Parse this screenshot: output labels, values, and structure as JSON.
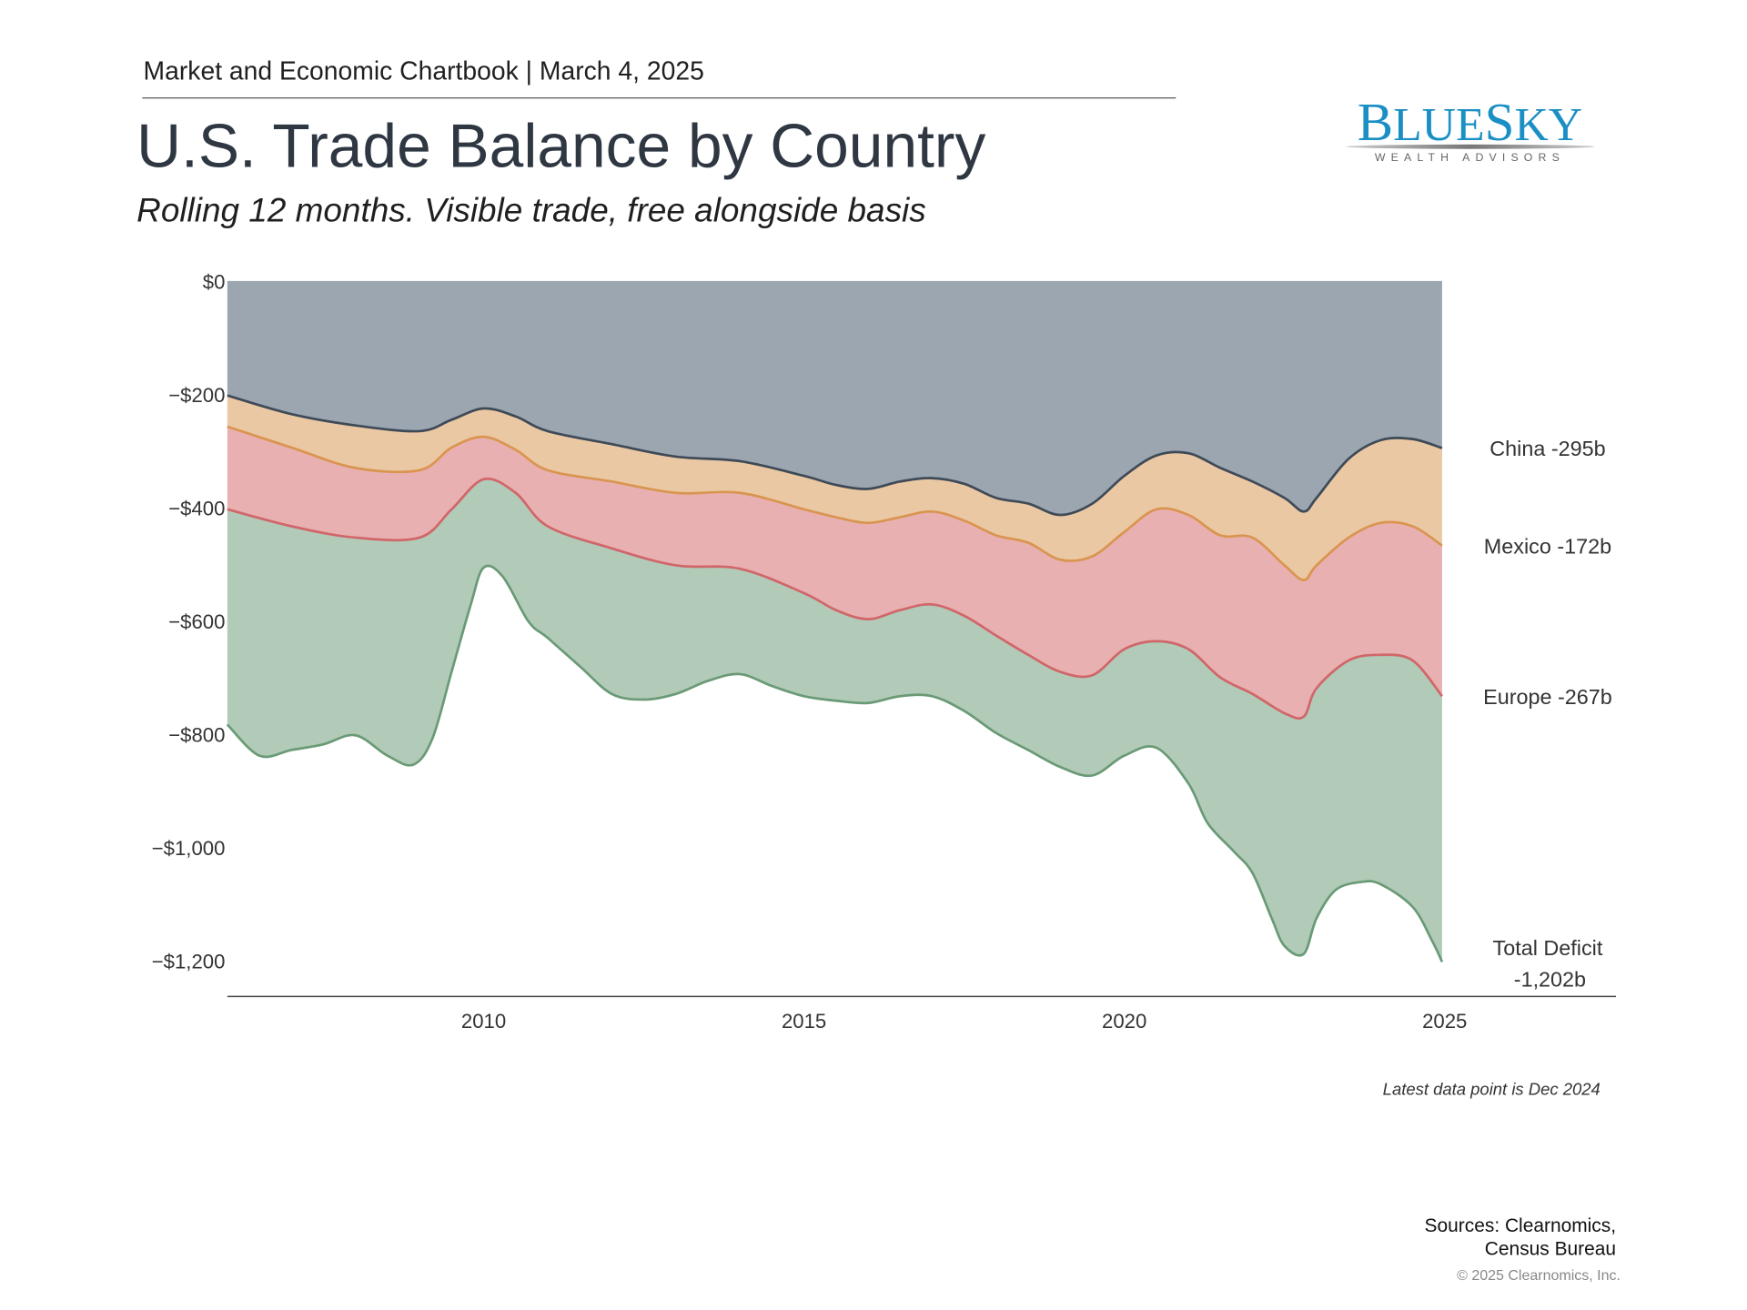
{
  "header": {
    "line": "Market and Economic Chartbook | March 4, 2025",
    "title": "U.S. Trade Balance by Country",
    "subtitle": "Rolling 12 months. Visible trade, free alongside basis"
  },
  "logo": {
    "name": "BLUESKY",
    "tagline": "WEALTH ADVISORS",
    "color": "#1a8fc4"
  },
  "footer": {
    "note": "Latest data point is Dec 2024",
    "sources_line1": "Sources: Clearnomics,",
    "sources_line2": "Census Bureau",
    "copyright": "© 2025 Clearnomics, Inc."
  },
  "chart_data": {
    "type": "area",
    "stacked": true,
    "ylim": [
      -1260,
      0
    ],
    "xlim": [
      2006.0,
      2025.0
    ],
    "yticks": [
      0,
      -200,
      -400,
      -600,
      -800,
      -1000,
      -1200
    ],
    "ytick_labels": [
      "$0",
      "−$200",
      "−$400",
      "−$600",
      "−$800",
      "−$1,000",
      "−$1,200"
    ],
    "xticks": [
      2010,
      2015,
      2020,
      2025
    ],
    "xtick_labels": [
      "2010",
      "2015",
      "2020",
      "2025"
    ],
    "grid": false,
    "series": [
      {
        "name": "China",
        "end_label": "China -295b",
        "fill": "#9ba6b0",
        "line": "#3e4a57",
        "points": [
          [
            2006.0,
            -202
          ],
          [
            2007,
            -235
          ],
          [
            2008,
            -255
          ],
          [
            2009,
            -265
          ],
          [
            2009.5,
            -245
          ],
          [
            2010,
            -225
          ],
          [
            2010.5,
            -239
          ],
          [
            2011,
            -265
          ],
          [
            2012,
            -288
          ],
          [
            2013,
            -310
          ],
          [
            2014,
            -318
          ],
          [
            2015,
            -344
          ],
          [
            2015.5,
            -360
          ],
          [
            2016,
            -367
          ],
          [
            2016.5,
            -354
          ],
          [
            2017,
            -348
          ],
          [
            2017.5,
            -358
          ],
          [
            2018,
            -383
          ],
          [
            2018.5,
            -393
          ],
          [
            2019,
            -413
          ],
          [
            2019.5,
            -393
          ],
          [
            2020,
            -344
          ],
          [
            2020.5,
            -308
          ],
          [
            2021,
            -304
          ],
          [
            2021.5,
            -330
          ],
          [
            2022,
            -354
          ],
          [
            2022.5,
            -383
          ],
          [
            2022.8,
            -407
          ],
          [
            2023,
            -383
          ],
          [
            2023.5,
            -314
          ],
          [
            2024,
            -281
          ],
          [
            2024.5,
            -279
          ],
          [
            2024.96,
            -295
          ]
        ]
      },
      {
        "name": "Mexico",
        "end_label": "Mexico -172b",
        "fill": "#ebc8a4",
        "line": "#d99550",
        "points": [
          [
            2006.0,
            -257
          ],
          [
            2007,
            -294
          ],
          [
            2008,
            -330
          ],
          [
            2009,
            -334
          ],
          [
            2009.5,
            -294
          ],
          [
            2010,
            -275
          ],
          [
            2010.5,
            -298
          ],
          [
            2011,
            -334
          ],
          [
            2012,
            -354
          ],
          [
            2013,
            -374
          ],
          [
            2014,
            -374
          ],
          [
            2015,
            -403
          ],
          [
            2015.5,
            -417
          ],
          [
            2016,
            -427
          ],
          [
            2016.5,
            -417
          ],
          [
            2017,
            -407
          ],
          [
            2017.5,
            -423
          ],
          [
            2018,
            -449
          ],
          [
            2018.5,
            -462
          ],
          [
            2019,
            -492
          ],
          [
            2019.5,
            -486
          ],
          [
            2020,
            -443
          ],
          [
            2020.5,
            -403
          ],
          [
            2021,
            -413
          ],
          [
            2021.5,
            -449
          ],
          [
            2022,
            -453
          ],
          [
            2022.5,
            -502
          ],
          [
            2022.8,
            -528
          ],
          [
            2023,
            -502
          ],
          [
            2023.5,
            -453
          ],
          [
            2024,
            -427
          ],
          [
            2024.5,
            -433
          ],
          [
            2024.96,
            -467
          ]
        ]
      },
      {
        "name": "Europe",
        "end_label": "Europe -267b",
        "fill": "#e8b0b0",
        "line": "#d0666a",
        "points": [
          [
            2006.0,
            -403
          ],
          [
            2007,
            -433
          ],
          [
            2008,
            -453
          ],
          [
            2009,
            -453
          ],
          [
            2009.5,
            -403
          ],
          [
            2010,
            -350
          ],
          [
            2010.5,
            -374
          ],
          [
            2011,
            -433
          ],
          [
            2012,
            -472
          ],
          [
            2013,
            -502
          ],
          [
            2014,
            -508
          ],
          [
            2015,
            -551
          ],
          [
            2015.5,
            -581
          ],
          [
            2016,
            -597
          ],
          [
            2016.5,
            -581
          ],
          [
            2017,
            -571
          ],
          [
            2017.5,
            -591
          ],
          [
            2018,
            -626
          ],
          [
            2018.5,
            -660
          ],
          [
            2019,
            -690
          ],
          [
            2019.5,
            -696
          ],
          [
            2020,
            -650
          ],
          [
            2020.5,
            -636
          ],
          [
            2021,
            -650
          ],
          [
            2021.5,
            -700
          ],
          [
            2022,
            -729
          ],
          [
            2022.5,
            -763
          ],
          [
            2022.8,
            -769
          ],
          [
            2023,
            -719
          ],
          [
            2023.5,
            -670
          ],
          [
            2024,
            -660
          ],
          [
            2024.5,
            -670
          ],
          [
            2024.96,
            -733
          ]
        ]
      },
      {
        "name": "Total Deficit",
        "end_label": "Total Deficit",
        "end_label2": "-1,202b",
        "fill": "#b2cbb8",
        "line": "#6a9a76",
        "points": [
          [
            2006.0,
            -783
          ],
          [
            2006.5,
            -838
          ],
          [
            2007,
            -828
          ],
          [
            2007.5,
            -818
          ],
          [
            2008,
            -802
          ],
          [
            2008.5,
            -838
          ],
          [
            2008.9,
            -854
          ],
          [
            2009.2,
            -808
          ],
          [
            2009.5,
            -690
          ],
          [
            2009.8,
            -571
          ],
          [
            2010,
            -506
          ],
          [
            2010.3,
            -522
          ],
          [
            2010.7,
            -601
          ],
          [
            2011,
            -630
          ],
          [
            2011.5,
            -680
          ],
          [
            2012,
            -729
          ],
          [
            2012.5,
            -739
          ],
          [
            2013,
            -729
          ],
          [
            2013.5,
            -706
          ],
          [
            2014,
            -694
          ],
          [
            2014.5,
            -715
          ],
          [
            2015,
            -733
          ],
          [
            2015.5,
            -741
          ],
          [
            2016,
            -745
          ],
          [
            2016.5,
            -733
          ],
          [
            2017,
            -733
          ],
          [
            2017.5,
            -759
          ],
          [
            2018,
            -798
          ],
          [
            2018.5,
            -828
          ],
          [
            2019,
            -858
          ],
          [
            2019.5,
            -873
          ],
          [
            2020,
            -838
          ],
          [
            2020.5,
            -824
          ],
          [
            2021,
            -887
          ],
          [
            2021.3,
            -957
          ],
          [
            2021.7,
            -1006
          ],
          [
            2022,
            -1045
          ],
          [
            2022.3,
            -1125
          ],
          [
            2022.5,
            -1174
          ],
          [
            2022.8,
            -1188
          ],
          [
            2023,
            -1125
          ],
          [
            2023.3,
            -1075
          ],
          [
            2023.7,
            -1061
          ],
          [
            2024,
            -1065
          ],
          [
            2024.5,
            -1105
          ],
          [
            2024.8,
            -1164
          ],
          [
            2024.96,
            -1202
          ]
        ]
      }
    ]
  }
}
